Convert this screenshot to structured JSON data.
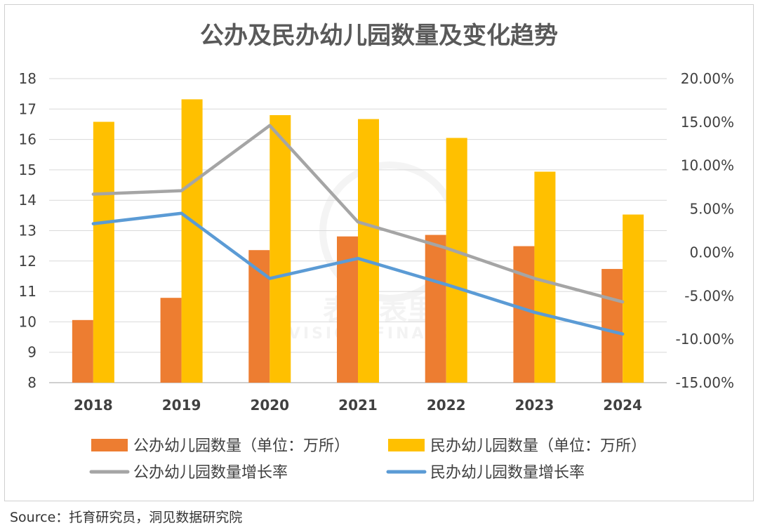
{
  "source": "Source：托育研究员，洞见数据研究院",
  "watermark": {
    "main": "表外表里",
    "sub": "VISION FINANCE"
  },
  "colors": {
    "public_bar": "#ED7D31",
    "private_bar": "#FFC000",
    "public_rate": "#A5A5A5",
    "private_rate": "#5B9BD5",
    "axis_text": "#404040",
    "title": "#595959"
  },
  "chart_data": {
    "type": "bar",
    "title": "公办及民办幼儿园数量及变化趋势",
    "categories": [
      "2018",
      "2019",
      "2020",
      "2021",
      "2022",
      "2023",
      "2024"
    ],
    "series": [
      {
        "name": "公办幼儿园数量（单位：万所）",
        "kind": "bar",
        "axis": "left",
        "values": [
          10.06,
          10.79,
          12.36,
          12.81,
          12.86,
          12.49,
          11.74
        ]
      },
      {
        "name": "民办幼儿园数量（单位：万所）",
        "kind": "bar",
        "axis": "left",
        "values": [
          16.58,
          17.32,
          16.8,
          16.67,
          16.05,
          14.94,
          13.53
        ]
      },
      {
        "name": "公办幼儿园数量增长率",
        "kind": "line",
        "axis": "right",
        "values": [
          6.7,
          7.1,
          14.6,
          3.5,
          0.5,
          -3.0,
          -5.7
        ]
      },
      {
        "name": "民办幼儿园数量增长率",
        "kind": "line",
        "axis": "right",
        "values": [
          3.3,
          4.5,
          -3.0,
          -0.7,
          -3.7,
          -6.9,
          -9.4
        ]
      }
    ],
    "y_left": {
      "lim": [
        8,
        18
      ],
      "ticks": [
        "18",
        "17",
        "16",
        "15",
        "14",
        "13",
        "12",
        "11",
        "10",
        "9",
        "8"
      ]
    },
    "y_right": {
      "lim": [
        -15,
        20
      ],
      "ticks": [
        "20.00%",
        "15.00%",
        "10.00%",
        "5.00%",
        "0.00%",
        "-5.00%",
        "-10.00%",
        "-15.00%"
      ]
    },
    "grid": true,
    "legend": "bottom"
  }
}
